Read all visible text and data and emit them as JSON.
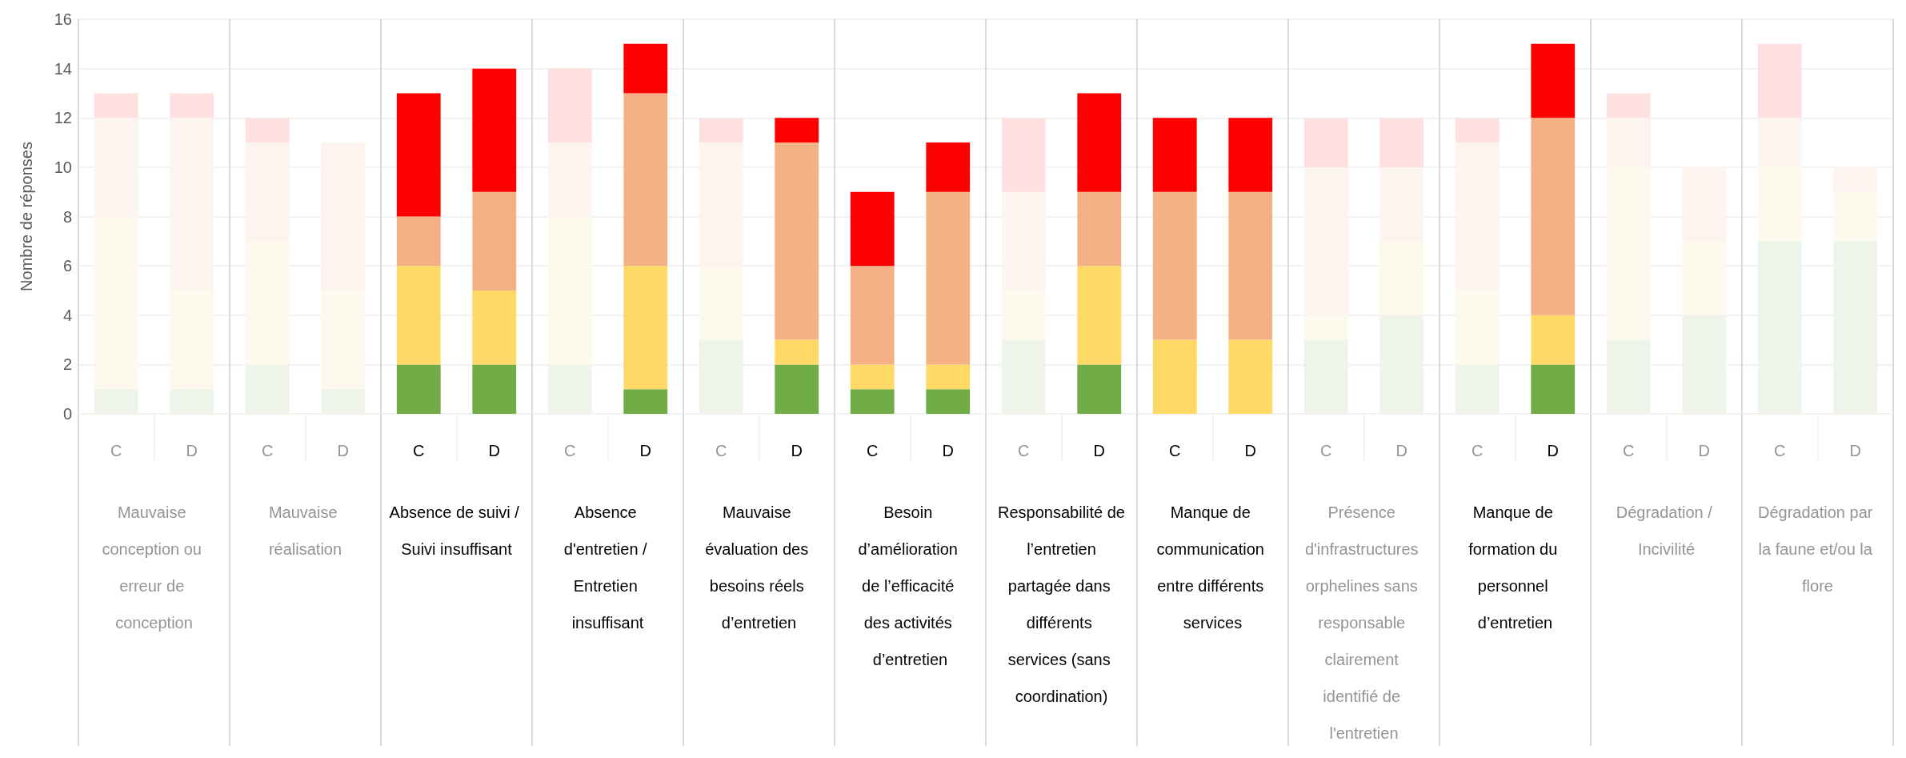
{
  "chart_data": {
    "type": "bar",
    "stacked": true,
    "ylabel": "Nombre de réponses",
    "categories": [
      "C",
      "D",
      "C",
      "D",
      "C",
      "D",
      "C",
      "D",
      "C",
      "D",
      "C",
      "D",
      "C",
      "D",
      "C",
      "D",
      "C",
      "D",
      "C",
      "D",
      "C",
      "D",
      "C",
      "D"
    ],
    "annotations": [
      "Mauvaise conception ou erreur de conception",
      "Mauvaise réalisation",
      "Absence de suivi / Suivi insuffisant",
      "Absence d'entretien / Entretien insuffisant",
      "Mauvaise évaluation des besoins réels d’entretien",
      "Besoin d’amélioration de l’efficacité des activités d’entretien",
      "Responsabilité de l’entretien partagée dans différents services (sans coordination)",
      "Manque de communication entre différents services",
      "Présence d'infrastructures orphelines sans responsable clairement identifié de l'entretien",
      "Manque de formation du personnel d’entretien",
      "Dégradation / Incivilité",
      "Dégradation par la faune et/ou la flore"
    ],
    "series": [
      {
        "color": "#70ad47",
        "values": [
          1,
          1,
          2,
          1,
          2,
          2,
          2,
          1,
          3,
          2,
          1,
          1,
          3,
          2,
          0,
          0,
          3,
          4,
          2,
          2,
          3,
          4,
          7,
          7
        ],
        "colors": [
          "#eef4e9",
          "#eef4e9",
          "#eef4e9",
          "#eef4e9",
          "#70ad47",
          "#70ad47",
          "#eef4e9",
          "#70ad47",
          "#eef4e9",
          "#70ad47",
          "#70ad47",
          "#70ad47",
          "#eef4e9",
          "#70ad47",
          "#70ad47",
          "#70ad47",
          "#eef4e9",
          "#eef4e9",
          "#eef4e9",
          "#70ad47",
          "#eef4e9",
          "#eef4e9",
          "#eef4e9",
          "#eef4e9"
        ]
      },
      {
        "color": "#ffd966",
        "values": [
          7,
          4,
          5,
          4,
          4,
          3,
          6,
          5,
          3,
          1,
          1,
          1,
          2,
          4,
          3,
          3,
          1,
          3,
          3,
          2,
          7,
          3,
          3,
          2
        ],
        "colors": [
          "#fef9ed",
          "#fef9ed",
          "#fef9ed",
          "#fef9ed",
          "#ffd966",
          "#ffd966",
          "#fef9ed",
          "#ffd966",
          "#fef9ed",
          "#ffd966",
          "#ffd966",
          "#ffd966",
          "#fef9ed",
          "#ffd966",
          "#ffd966",
          "#ffd966",
          "#fef9ed",
          "#fef9ed",
          "#fef9ed",
          "#ffd966",
          "#fef9ed",
          "#fef9ed",
          "#fef9ed",
          "#fef9ed"
        ]
      },
      {
        "color": "#f4b183",
        "values": [
          4,
          7,
          4,
          6,
          2,
          4,
          3,
          7,
          5,
          8,
          4,
          7,
          4,
          3,
          6,
          6,
          6,
          3,
          6,
          8,
          2,
          3,
          2,
          1
        ],
        "colors": [
          "#fdf4f0",
          "#fdf4f0",
          "#fdf4f0",
          "#fdf4f0",
          "#f4b183",
          "#f4b183",
          "#fdf4f0",
          "#f4b183",
          "#fdf4f0",
          "#f4b183",
          "#f4b183",
          "#f4b183",
          "#fdf4f0",
          "#f4b183",
          "#f4b183",
          "#f4b183",
          "#fdf4f0",
          "#fdf4f0",
          "#fdf4f0",
          "#f4b183",
          "#fdf4f0",
          "#fdf4f0",
          "#fdf4f0",
          "#fdf4f0"
        ]
      },
      {
        "color": "#ff0000",
        "values": [
          1,
          1,
          1,
          0,
          5,
          5,
          3,
          2,
          1,
          1,
          3,
          2,
          3,
          4,
          3,
          3,
          2,
          2,
          1,
          3,
          1,
          0,
          3,
          0
        ],
        "colors": [
          "#fee0e1",
          "#fee0e1",
          "#fee0e1",
          "#fee0e1",
          "#ff0000",
          "#ff0000",
          "#fee0e1",
          "#ff0000",
          "#fee0e1",
          "#ff0000",
          "#ff0000",
          "#ff0000",
          "#fee0e1",
          "#ff0000",
          "#ff0000",
          "#ff0000",
          "#fee0e1",
          "#fee0e1",
          "#fee0e1",
          "#ff0000",
          "#fee0e1",
          "#fee0e1",
          "#fee0e1",
          "#fee0e1"
        ]
      }
    ],
    "ylim": [
      0,
      16
    ],
    "yticks": [
      0,
      2,
      4,
      6,
      8,
      10,
      12,
      14,
      16
    ],
    "grid": "y"
  }
}
